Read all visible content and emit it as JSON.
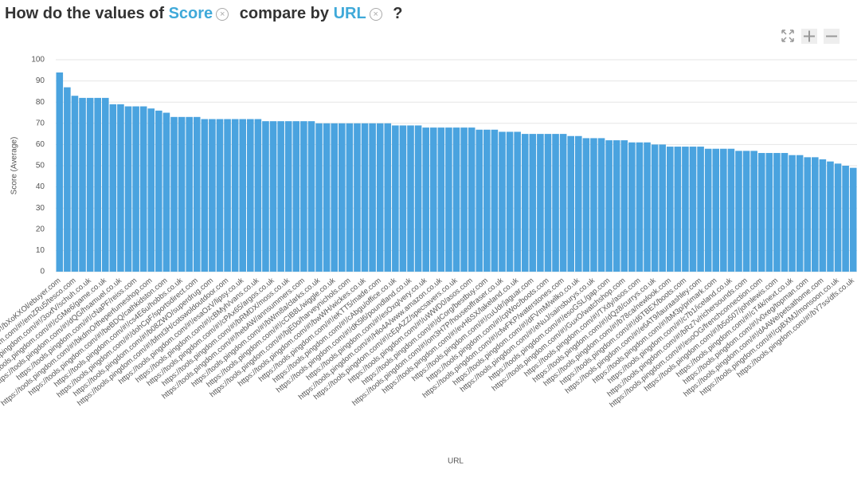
{
  "chart_data": {
    "type": "bar",
    "title_prefix": "How do the values of",
    "measure": "Score",
    "title_middle": "compare by",
    "dimension": "URL",
    "title_suffix": "?",
    "ylabel": "Score (Average)",
    "xlabel": "URL",
    "color": "#4aa3df",
    "ylim": [
      0,
      100
    ],
    "yticks": [
      0,
      10,
      20,
      30,
      40,
      50,
      60,
      70,
      80,
      90,
      100
    ],
    "grid": true,
    "categories": [
      "https://tools.pingdom.com/#!/bXoKXOl/ebuyer.com",
      null,
      "https://tools.pingdom.com/#!/emZRu5/tesco.com",
      null,
      "https://tools.pingdom.com/#!/3oxfV/schuh.co.uk",
      null,
      "https://tools.pingdom.com/#!/cGMe6/game.co.uk",
      null,
      "https://tools.pingdom.com/#!/dQG/hsamuel.co.uk",
      null,
      "https://tools.pingdom.com/#!/cNaPF/reiss.com",
      null,
      "https://tools.pingdom.com/#!/bkdmO/theperfumeshop.com",
      null,
      "https://tools.pingdom.com/#!/beBDQ/cathkidston.com",
      null,
      "https://tools.pingdom.com/#!/cs4E6u/hobbs.co.uk",
      null,
      "https://tools.pingdom.com/#!/dohCpF/sportsdirect.com",
      null,
      "https://tools.pingdom.com/#!/b08ZWO/superdrug.com",
      null,
      "https://tools.pingdom.com/#!/bfmt3H/cotswoldoutdoor.com",
      null,
      "https://tools.pingdom.com/#!/esaOzV/lipsy.co.uk",
      null,
      "https://tools.pingdom.com/#!/cBMyh/vans.co.uk",
      null,
      "https://tools.pingdom.com/#!/cPAx65/argos.co.uk",
      null,
      "https://tools.pingdom.com/#!/bRMDX/moss.co.uk",
      null,
      "https://tools.pingdom.com/#!/hebAW/annsummers.com",
      null,
      "https://tools.pingdom.com/#!/bWm8a/clarks.co.uk",
      null,
      "https://tools.pingdom.com/#!/cCIB8L/wiggle.co.uk",
      null,
      "https://tools.pingdom.com/#!/bjE0o/harveynichols.com",
      null,
      "https://tools.pingdom.com/#!/bwWH/wickes.co.uk",
      null,
      "https://tools.pingdom.com/#!/eKTT5/made.com",
      null,
      "https://tools.pingdom.com/#!/cAbgu/office.co.uk",
      null,
      "https://tools.pingdom.com/#!/dK5l6/poundland.co.uk",
      null,
      "https://tools.pingdom.com/#!/esOxq/very.co.uk",
      null,
      "https://tools.pingdom.com/#!/Hlo4A/www.amazon.co.uk",
      null,
      "https://tools.pingdom.com/#!/cEpAZZ/specsavers.co.uk",
      null,
      "https://tools.pingdom.com/#!/uWWD0/asos.com",
      null,
      "https://tools.pingdom.com/#!/dCorg/bestbuy.com",
      null,
      "https://tools.pingdom.com/#!/om3H7P/houseoffraser.co.uk",
      null,
      "https://tools.pingdom.com/#!/evH6SX/lakeland.co.uk",
      null,
      "https://tools.pingdom.com/#!/cuUdr/jaguar.com",
      null,
      "https://tools.pingdom.com/#!/cpWoc/boots.com",
      null,
      "https://tools.pingdom.com/#!/cfwFKP/waterstones.com",
      null,
      "https://tools.pingdom.com/#!/dFVmM/wilko.co.uk",
      null,
      "https://tools.pingdom.com/#!/eNuJ/sainsburys.co.uk",
      null,
      "https://tools.pingdom.com/#!/esoGSL/gap.com",
      null,
      "https://tools.pingdom.com/#!/GuxO/watchshop.com",
      null,
      "https://tools.pingdom.com/#!/TXdy/asos.com",
      null,
      "https://tools.pingdom.com/#!/dQz8/currys.co.uk",
      null,
      "https://tools.pingdom.com/#!/b78ca/newlook.com",
      null,
      "https://tools.pingdom.com/#!/d6TBEX/boots.com",
      null,
      "https://tools.pingdom.com/#!/e6AT9/lauraashley.com",
      null,
      "https://tools.pingdom.com/#!/bM3p/primark.com",
      null,
      "https://tools.pingdom.com/#!/c7b1/iceland.co.uk",
      null,
      "https://tools.pingdom.com/#!/bRz7v/richersounds.com",
      null,
      "https://tools.pingdom.com/#!/esoOG/frenchconnection.com",
      null,
      "https://tools.pingdom.com/#!/b5o507/johnlewis.com",
      null,
      "https://tools.pingdom.com/#!/cT4k/next.co.uk",
      null,
      "https://tools.pingdom.com/#!/v0xeg/topman.com",
      null,
      "https://tools.pingdom.com/#!/dAAWe/petsathome.com",
      null,
      "https://tools.pingdom.com/#!/cpBXMJ/monsoon.co.uk",
      null,
      "https://tools.pingdom.com/#!/bY7ss/dfs.co.uk"
    ],
    "values": [
      94,
      87,
      83,
      82,
      82,
      82,
      82,
      79,
      79,
      78,
      78,
      78,
      77,
      76,
      75,
      73,
      73,
      73,
      73,
      72,
      72,
      72,
      72,
      72,
      72,
      72,
      72,
      71,
      71,
      71,
      71,
      71,
      71,
      71,
      70,
      70,
      70,
      70,
      70,
      70,
      70,
      70,
      70,
      70,
      69,
      69,
      69,
      69,
      68,
      68,
      68,
      68,
      68,
      68,
      68,
      67,
      67,
      67,
      66,
      66,
      66,
      65,
      65,
      65,
      65,
      65,
      65,
      64,
      64,
      63,
      63,
      63,
      62,
      62,
      62,
      61,
      61,
      61,
      60,
      60,
      59,
      59,
      59,
      59,
      59,
      58,
      58,
      58,
      58,
      57,
      57,
      57,
      56,
      56,
      56,
      56,
      55,
      55,
      54,
      54,
      53,
      52,
      51,
      50,
      49
    ]
  }
}
